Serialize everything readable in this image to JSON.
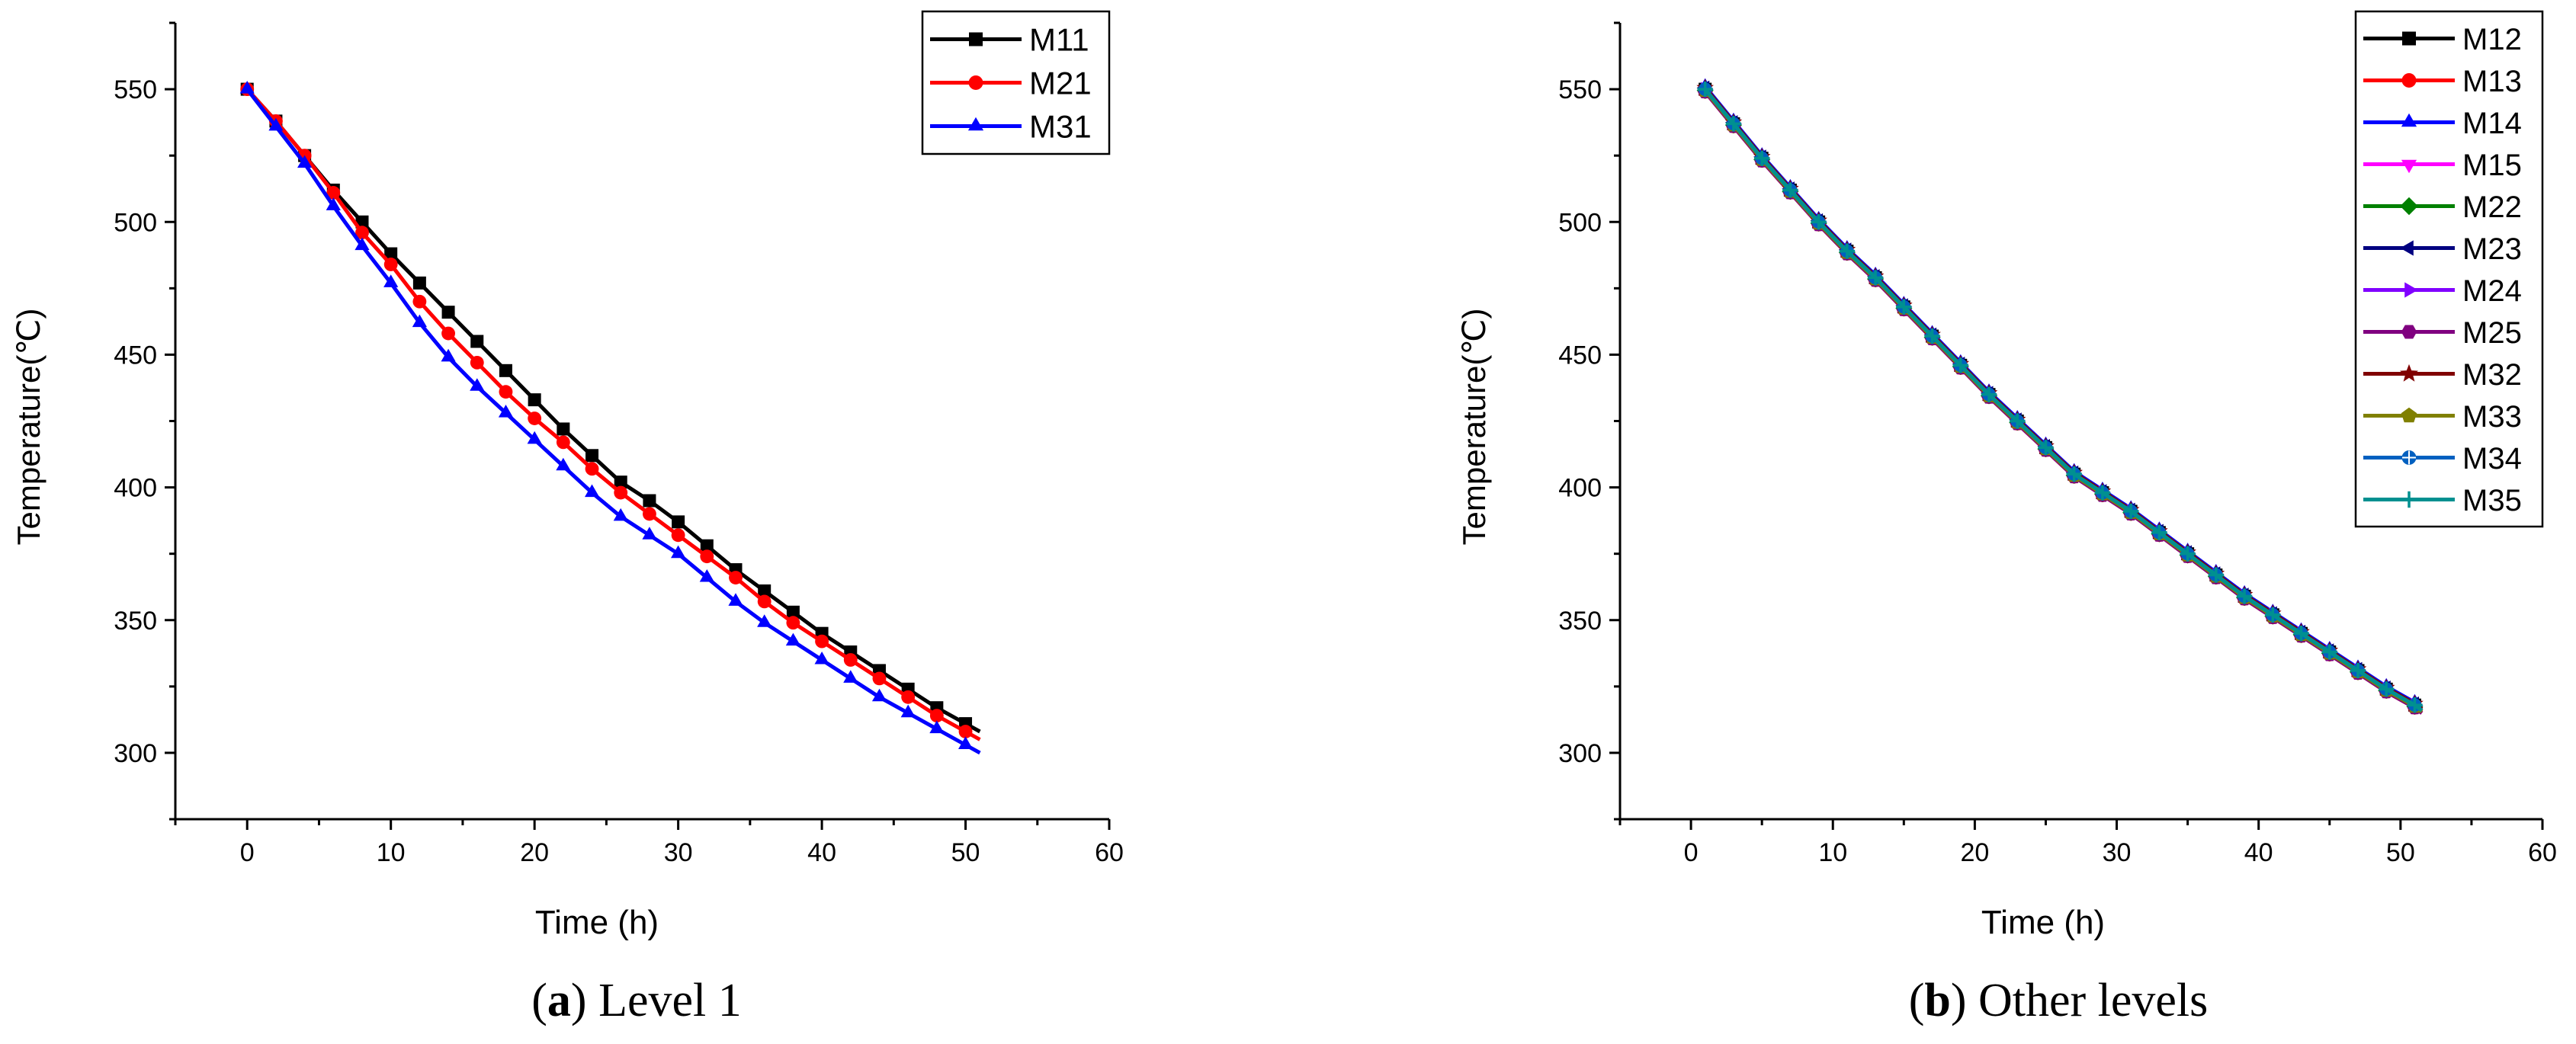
{
  "chart_data": [
    {
      "type": "line",
      "panel_label": "(a)",
      "caption_letter": "a",
      "caption_text": "Level 1",
      "xlabel": "Time (h)",
      "ylabel": "Temperature(℃)",
      "xlim": [
        -5,
        60
      ],
      "ylim": [
        275,
        575
      ],
      "xticks": [
        0,
        10,
        20,
        30,
        40,
        50,
        60
      ],
      "yticks": [
        300,
        350,
        400,
        450,
        500,
        550
      ],
      "legend_position": "top-right",
      "series": [
        {
          "name": "M11",
          "color": "#000000",
          "marker": "square",
          "x": [
            0,
            2,
            4,
            6,
            8,
            10,
            12,
            14,
            16,
            18,
            20,
            22,
            24,
            26,
            28,
            30,
            32,
            34,
            36,
            38,
            40,
            42,
            44,
            46,
            48,
            50,
            51
          ],
          "y": [
            550,
            538,
            525,
            512,
            500,
            488,
            477,
            466,
            455,
            444,
            433,
            422,
            412,
            402,
            395,
            387,
            378,
            369,
            361,
            353,
            345,
            338,
            331,
            324,
            317,
            311,
            308
          ]
        },
        {
          "name": "M21",
          "color": "#ff0000",
          "marker": "circle",
          "x": [
            0,
            2,
            4,
            6,
            8,
            10,
            12,
            14,
            16,
            18,
            20,
            22,
            24,
            26,
            28,
            30,
            32,
            34,
            36,
            38,
            40,
            42,
            44,
            46,
            48,
            50,
            51
          ],
          "y": [
            550,
            538,
            525,
            511,
            496,
            484,
            470,
            458,
            447,
            436,
            426,
            417,
            407,
            398,
            390,
            382,
            374,
            366,
            357,
            349,
            342,
            335,
            328,
            321,
            314,
            308,
            305
          ]
        },
        {
          "name": "M31",
          "color": "#0000ff",
          "marker": "triangle-up",
          "x": [
            0,
            2,
            4,
            6,
            8,
            10,
            12,
            14,
            16,
            18,
            20,
            22,
            24,
            26,
            28,
            30,
            32,
            34,
            36,
            38,
            40,
            42,
            44,
            46,
            48,
            50,
            51
          ],
          "y": [
            550,
            536,
            522,
            506,
            491,
            477,
            462,
            449,
            438,
            428,
            418,
            408,
            398,
            389,
            382,
            375,
            366,
            357,
            349,
            342,
            335,
            328,
            321,
            315,
            309,
            303,
            300
          ]
        }
      ]
    },
    {
      "type": "line",
      "panel_label": "(b)",
      "caption_letter": "b",
      "caption_text": "Other levels",
      "xlabel": "Time (h)",
      "ylabel": "Temperature(℃)",
      "xlim": [
        -5,
        60
      ],
      "ylim": [
        275,
        575
      ],
      "xticks": [
        0,
        10,
        20,
        30,
        40,
        50,
        60
      ],
      "yticks": [
        300,
        350,
        400,
        450,
        500,
        550
      ],
      "legend_position": "top-right",
      "shared_x": [
        1,
        3,
        5,
        7,
        9,
        11,
        13,
        15,
        17,
        19,
        21,
        23,
        25,
        27,
        29,
        31,
        33,
        35,
        37,
        39,
        41,
        43,
        45,
        47,
        49,
        51,
        51.5
      ],
      "shared_y": [
        550,
        537,
        524,
        512,
        500,
        489,
        479,
        468,
        457,
        446,
        435,
        425,
        415,
        405,
        398,
        391,
        383,
        375,
        367,
        359,
        352,
        345,
        338,
        331,
        324,
        318,
        316
      ],
      "series": [
        {
          "name": "M12",
          "color": "#000000",
          "marker": "square",
          "offset": 0
        },
        {
          "name": "M13",
          "color": "#ff0000",
          "marker": "circle",
          "offset": -1
        },
        {
          "name": "M14",
          "color": "#0000ff",
          "marker": "triangle-up",
          "offset": 1
        },
        {
          "name": "M15",
          "color": "#ff00ff",
          "marker": "triangle-down",
          "offset": 0
        },
        {
          "name": "M22",
          "color": "#008000",
          "marker": "diamond",
          "offset": -0.5
        },
        {
          "name": "M23",
          "color": "#000080",
          "marker": "triangle-left",
          "offset": 0.5
        },
        {
          "name": "M24",
          "color": "#8000ff",
          "marker": "triangle-right",
          "offset": 0
        },
        {
          "name": "M25",
          "color": "#800080",
          "marker": "hexagon",
          "offset": -1
        },
        {
          "name": "M32",
          "color": "#800000",
          "marker": "star",
          "offset": 0.5
        },
        {
          "name": "M33",
          "color": "#808000",
          "marker": "pentagon",
          "offset": -0.5
        },
        {
          "name": "M34",
          "color": "#0060c0",
          "marker": "circle-cross",
          "offset": 0
        },
        {
          "name": "M35",
          "color": "#009090",
          "marker": "plus",
          "offset": 0
        }
      ]
    }
  ]
}
